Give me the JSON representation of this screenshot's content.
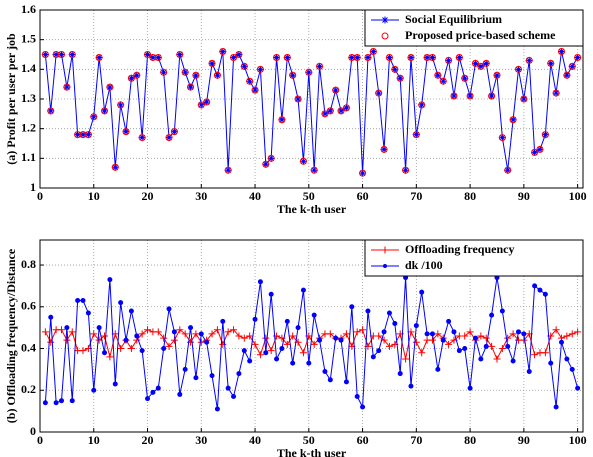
{
  "chart_data": [
    {
      "type": "line",
      "ylabel": "(a) Profit per user per job",
      "xlabel": "The k-th user",
      "xlim": [
        0,
        101
      ],
      "xticks": [
        0,
        10,
        20,
        30,
        40,
        50,
        60,
        70,
        80,
        90,
        100
      ],
      "ylim": [
        1,
        1.6
      ],
      "yticks": [
        1,
        1.1,
        1.2,
        1.3,
        1.4,
        1.5,
        1.6
      ],
      "grid": true,
      "legend": "upper right",
      "x": [
        1,
        2,
        3,
        4,
        5,
        6,
        7,
        8,
        9,
        10,
        11,
        12,
        13,
        14,
        15,
        16,
        17,
        18,
        19,
        20,
        21,
        22,
        23,
        24,
        25,
        26,
        27,
        28,
        29,
        30,
        31,
        32,
        33,
        34,
        35,
        36,
        37,
        38,
        39,
        40,
        41,
        42,
        43,
        44,
        45,
        46,
        47,
        48,
        49,
        50,
        51,
        52,
        53,
        54,
        55,
        56,
        57,
        58,
        59,
        60,
        61,
        62,
        63,
        64,
        65,
        66,
        67,
        68,
        69,
        70,
        71,
        72,
        73,
        74,
        75,
        76,
        77,
        78,
        79,
        80,
        81,
        82,
        83,
        84,
        85,
        86,
        87,
        88,
        89,
        90,
        91,
        92,
        93,
        94,
        95,
        96,
        97,
        98,
        99,
        100
      ],
      "series": [
        {
          "name": "Social Equilibrium",
          "color": "#0000ff",
          "line": true,
          "marker": "star",
          "values": [
            1.45,
            1.26,
            1.45,
            1.45,
            1.34,
            1.45,
            1.18,
            1.18,
            1.18,
            1.24,
            1.44,
            1.26,
            1.34,
            1.07,
            1.28,
            1.19,
            1.37,
            1.38,
            1.17,
            1.45,
            1.44,
            1.44,
            1.39,
            1.17,
            1.19,
            1.45,
            1.39,
            1.34,
            1.38,
            1.28,
            1.29,
            1.42,
            1.38,
            1.46,
            1.06,
            1.44,
            1.45,
            1.41,
            1.36,
            1.33,
            1.4,
            1.08,
            1.1,
            1.44,
            1.23,
            1.44,
            1.38,
            1.3,
            1.09,
            1.39,
            1.06,
            1.41,
            1.25,
            1.26,
            1.33,
            1.26,
            1.27,
            1.44,
            1.44,
            1.05,
            1.44,
            1.46,
            1.32,
            1.13,
            1.44,
            1.4,
            1.37,
            1.06,
            1.44,
            1.18,
            1.28,
            1.44,
            1.44,
            1.38,
            1.36,
            1.43,
            1.31,
            1.44,
            1.37,
            1.31,
            1.42,
            1.41,
            1.42,
            1.31,
            1.38,
            1.17,
            1.06,
            1.23,
            1.4,
            1.3,
            1.43,
            1.12,
            1.13,
            1.18,
            1.42,
            1.32,
            1.46,
            1.38,
            1.41,
            1.44
          ]
        },
        {
          "name": "Proposed price-based scheme",
          "color": "#ff0000",
          "line": false,
          "marker": "circle",
          "values": [
            1.45,
            1.26,
            1.45,
            1.45,
            1.34,
            1.45,
            1.18,
            1.18,
            1.18,
            1.24,
            1.44,
            1.26,
            1.34,
            1.07,
            1.28,
            1.19,
            1.37,
            1.38,
            1.17,
            1.45,
            1.44,
            1.44,
            1.39,
            1.17,
            1.19,
            1.45,
            1.39,
            1.34,
            1.38,
            1.28,
            1.29,
            1.42,
            1.38,
            1.46,
            1.06,
            1.44,
            1.45,
            1.41,
            1.36,
            1.33,
            1.4,
            1.08,
            1.1,
            1.44,
            1.23,
            1.44,
            1.38,
            1.3,
            1.09,
            1.39,
            1.06,
            1.41,
            1.25,
            1.26,
            1.33,
            1.26,
            1.27,
            1.44,
            1.44,
            1.05,
            1.44,
            1.46,
            1.32,
            1.13,
            1.44,
            1.4,
            1.37,
            1.06,
            1.44,
            1.18,
            1.28,
            1.44,
            1.44,
            1.38,
            1.36,
            1.43,
            1.31,
            1.44,
            1.37,
            1.31,
            1.42,
            1.41,
            1.42,
            1.31,
            1.38,
            1.17,
            1.06,
            1.23,
            1.4,
            1.3,
            1.43,
            1.12,
            1.13,
            1.18,
            1.42,
            1.32,
            1.46,
            1.38,
            1.41,
            1.44
          ]
        }
      ]
    },
    {
      "type": "line",
      "ylabel": "(b) Offloading frequency/Distance",
      "xlabel": "The k-th user",
      "xlim": [
        0,
        101
      ],
      "xticks": [
        0,
        10,
        20,
        30,
        40,
        50,
        60,
        70,
        80,
        90,
        100
      ],
      "ylim": [
        0,
        0.92
      ],
      "yticks": [
        0,
        0.2,
        0.4,
        0.6,
        0.8
      ],
      "grid": true,
      "legend": "upper right",
      "x": [
        1,
        2,
        3,
        4,
        5,
        6,
        7,
        8,
        9,
        10,
        11,
        12,
        13,
        14,
        15,
        16,
        17,
        18,
        19,
        20,
        21,
        22,
        23,
        24,
        25,
        26,
        27,
        28,
        29,
        30,
        31,
        32,
        33,
        34,
        35,
        36,
        37,
        38,
        39,
        40,
        41,
        42,
        43,
        44,
        45,
        46,
        47,
        48,
        49,
        50,
        51,
        52,
        53,
        54,
        55,
        56,
        57,
        58,
        59,
        60,
        61,
        62,
        63,
        64,
        65,
        66,
        67,
        68,
        69,
        70,
        71,
        72,
        73,
        74,
        75,
        76,
        77,
        78,
        79,
        80,
        81,
        82,
        83,
        84,
        85,
        86,
        87,
        88,
        89,
        90,
        91,
        92,
        93,
        94,
        95,
        96,
        97,
        98,
        99,
        100
      ],
      "series": [
        {
          "name": "Offloading frequency",
          "color": "#ff0000",
          "line": true,
          "marker": "plus",
          "values": [
            0.48,
            0.43,
            0.49,
            0.49,
            0.44,
            0.48,
            0.39,
            0.39,
            0.4,
            0.47,
            0.44,
            0.46,
            0.36,
            0.47,
            0.4,
            0.44,
            0.4,
            0.44,
            0.47,
            0.49,
            0.48,
            0.48,
            0.45,
            0.41,
            0.44,
            0.49,
            0.47,
            0.43,
            0.47,
            0.43,
            0.44,
            0.47,
            0.49,
            0.42,
            0.48,
            0.49,
            0.46,
            0.45,
            0.46,
            0.42,
            0.37,
            0.45,
            0.39,
            0.46,
            0.45,
            0.42,
            0.46,
            0.43,
            0.38,
            0.46,
            0.42,
            0.45,
            0.47,
            0.47,
            0.45,
            0.45,
            0.47,
            0.41,
            0.48,
            0.49,
            0.41,
            0.46,
            0.46,
            0.44,
            0.41,
            0.42,
            0.47,
            0.35,
            0.48,
            0.43,
            0.38,
            0.44,
            0.44,
            0.47,
            0.45,
            0.42,
            0.44,
            0.46,
            0.46,
            0.48,
            0.44,
            0.46,
            0.45,
            0.41,
            0.35,
            0.4,
            0.45,
            0.47,
            0.44,
            0.44,
            0.47,
            0.37,
            0.38,
            0.38,
            0.46,
            0.49,
            0.45,
            0.46,
            0.47,
            0.48
          ]
        },
        {
          "name": "dk /100",
          "color": "#0000ff",
          "line": true,
          "marker": "dot",
          "values": [
            0.14,
            0.55,
            0.14,
            0.15,
            0.5,
            0.15,
            0.63,
            0.63,
            0.57,
            0.2,
            0.5,
            0.38,
            0.73,
            0.23,
            0.62,
            0.44,
            0.58,
            0.46,
            0.39,
            0.16,
            0.19,
            0.21,
            0.4,
            0.59,
            0.48,
            0.18,
            0.3,
            0.5,
            0.26,
            0.47,
            0.43,
            0.27,
            0.11,
            0.53,
            0.21,
            0.17,
            0.28,
            0.39,
            0.34,
            0.54,
            0.72,
            0.38,
            0.66,
            0.35,
            0.4,
            0.53,
            0.33,
            0.5,
            0.68,
            0.33,
            0.56,
            0.44,
            0.29,
            0.25,
            0.45,
            0.44,
            0.24,
            0.6,
            0.17,
            0.12,
            0.58,
            0.36,
            0.39,
            0.48,
            0.57,
            0.52,
            0.28,
            0.74,
            0.22,
            0.51,
            0.67,
            0.47,
            0.47,
            0.3,
            0.44,
            0.53,
            0.48,
            0.39,
            0.4,
            0.21,
            0.45,
            0.35,
            0.41,
            0.56,
            0.74,
            0.58,
            0.41,
            0.34,
            0.48,
            0.47,
            0.29,
            0.7,
            0.68,
            0.66,
            0.33,
            0.12,
            0.43,
            0.35,
            0.3,
            0.21
          ]
        }
      ]
    }
  ]
}
